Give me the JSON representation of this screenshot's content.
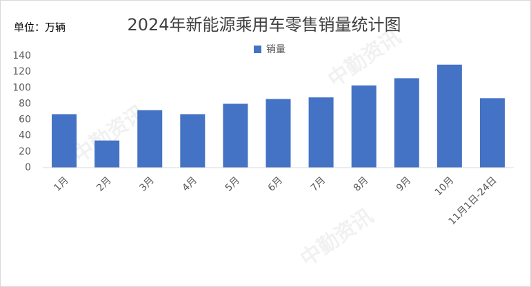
{
  "chart_data": {
    "type": "bar",
    "title": "2024年新能源乘用车零售销量统计图",
    "unit_label": "单位：万辆",
    "watermark": "中勤资讯",
    "categories": [
      "1月",
      "2月",
      "3月",
      "4月",
      "5月",
      "6月",
      "7月",
      "8月",
      "9月",
      "10月",
      "11月1日-24日"
    ],
    "series": [
      {
        "name": "销量",
        "color": "#4472c4",
        "values": [
          67,
          34,
          72,
          67,
          80,
          86,
          88,
          103,
          112,
          129,
          87
        ]
      }
    ],
    "ylim": [
      0,
      140
    ],
    "yticks": [
      0,
      20,
      40,
      60,
      80,
      100,
      120,
      140
    ],
    "grid": false,
    "legend": "top"
  }
}
